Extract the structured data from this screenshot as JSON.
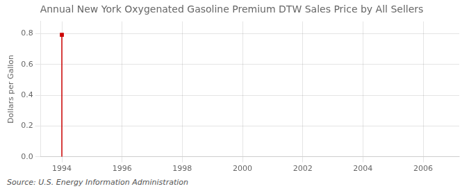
{
  "chart_data": {
    "type": "line",
    "title": "Annual New York Oxygenated Gasoline Premium DTW Sales Price by All Sellers",
    "ylabel": "Dollars per Gallon",
    "source": "Source: U.S. Energy Information Administration",
    "series": [
      {
        "x": [
          1994,
          1994
        ],
        "values": [
          0.0,
          0.793
        ],
        "color": "#cc0000"
      },
      {
        "x": [
          1994
        ],
        "values": [
          0.793
        ],
        "color": "#cc0000",
        "marker": "square",
        "type": "scatter"
      }
    ],
    "xlim": [
      1993.3,
      2007.2
    ],
    "ylim": [
      0.0,
      0.88
    ],
    "xticks": [
      1994,
      1996,
      1998,
      2000,
      2002,
      2004,
      2006
    ],
    "yticks": [
      {
        "value": 0.0,
        "label": "0.0"
      },
      0.2,
      0.4,
      0.6,
      0.8
    ],
    "grid": true
  }
}
